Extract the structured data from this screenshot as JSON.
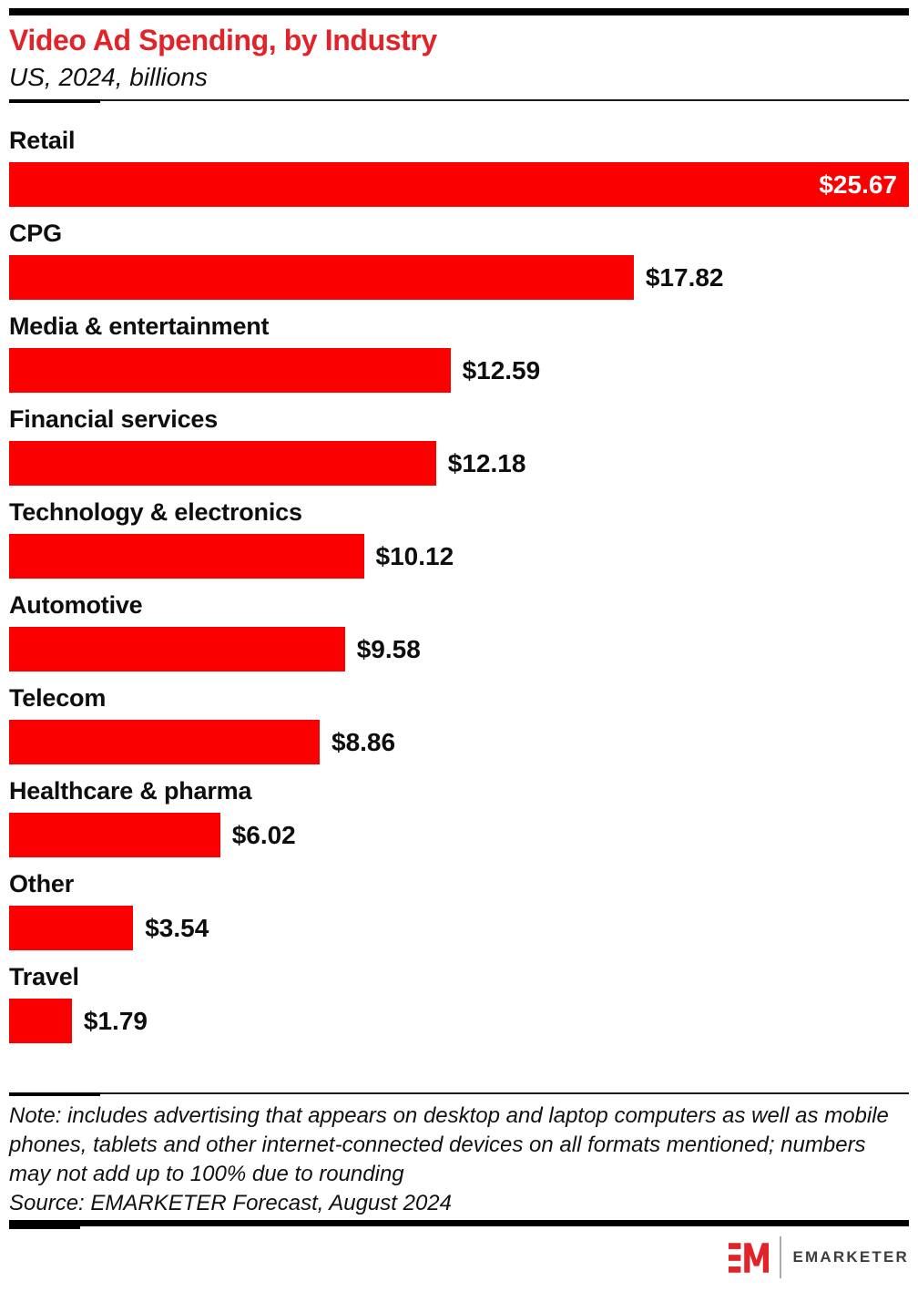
{
  "header": {
    "title": "Video Ad Spending, by Industry",
    "subtitle": "US, 2024, billions"
  },
  "chart_data": {
    "type": "bar",
    "orientation": "horizontal",
    "title": "Video Ad Spending, by Industry",
    "subtitle": "US, 2024, billions",
    "unit": "US$ billions",
    "categories": [
      "Retail",
      "CPG",
      "Media & entertainment",
      "Financial services",
      "Technology & electronics",
      "Automotive",
      "Telecom",
      "Healthcare & pharma",
      "Other",
      "Travel"
    ],
    "values": [
      25.67,
      17.82,
      12.59,
      12.18,
      10.12,
      9.58,
      8.86,
      6.02,
      3.54,
      1.79
    ],
    "value_labels": [
      "$25.67",
      "$17.82",
      "$12.59",
      "$12.18",
      "$10.12",
      "$9.58",
      "$8.86",
      "$6.02",
      "$3.54",
      "$1.79"
    ],
    "xlim": [
      0,
      25.67
    ],
    "grid": false,
    "legend": false,
    "bar_color": "#fb0000"
  },
  "footer": {
    "note": "Note: includes advertising that appears on desktop and laptop computers as well as mobile phones, tablets and other internet-connected devices on all formats mentioned; numbers may not add up to 100% due to rounding",
    "source": "Source: EMARKETER Forecast, August 2024"
  },
  "branding": {
    "logo_monogram": "EM",
    "logo_text": "EMARKETER"
  },
  "colors": {
    "title_red": "#e1242a",
    "bar_red": "#fb0000",
    "text_black": "#0e0e0e",
    "accent_black": "#000000"
  }
}
